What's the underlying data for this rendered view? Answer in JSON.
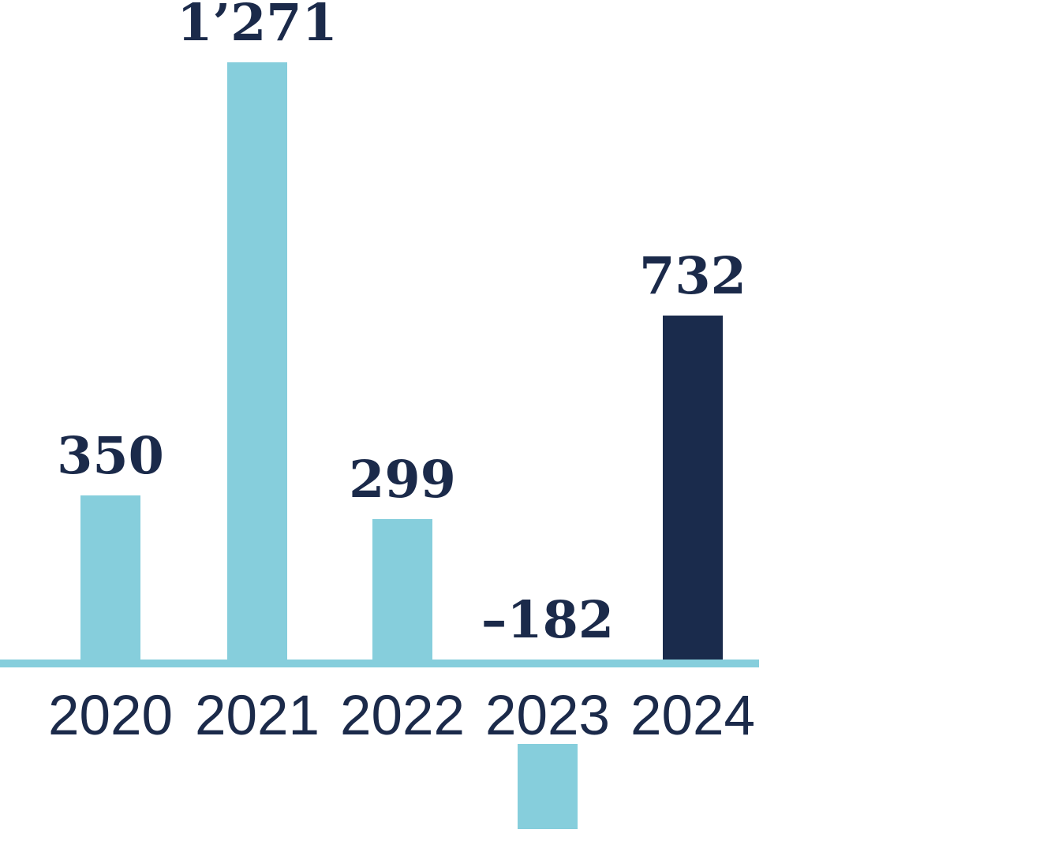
{
  "chart_data": {
    "type": "bar",
    "categories": [
      "2020",
      "2021",
      "2022",
      "2023",
      "2024"
    ],
    "values": [
      350,
      1271,
      299,
      -182,
      732
    ],
    "value_labels": [
      "350",
      "1’271",
      "299",
      "–182",
      "732"
    ],
    "bar_colors": [
      "#86CEDC",
      "#86CEDC",
      "#86CEDC",
      "#86CEDC",
      "#1A2B4C"
    ],
    "title": "",
    "subtitle": "",
    "xlabel": "",
    "ylabel": "",
    "legend_position": "none",
    "grid": false,
    "axis_color": "#86CEDC",
    "label_color": "#1B2A4A",
    "highlight_category": "2024",
    "ylim": [
      -200,
      1300
    ]
  }
}
